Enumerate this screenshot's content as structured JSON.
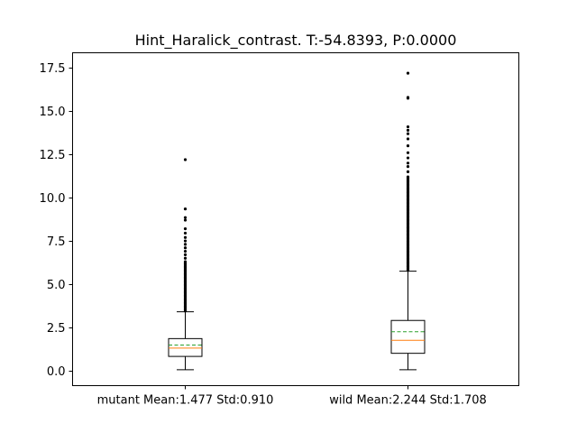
{
  "chart_data": {
    "type": "box",
    "title": "Hint_Haralick_contrast. T:-54.8393, P:0.0000",
    "xlabel": "",
    "ylabel": "",
    "ylim": [
      -0.87,
      18.38
    ],
    "yticks": [
      "0.0",
      "2.5",
      "5.0",
      "7.5",
      "10.0",
      "12.5",
      "15.0",
      "17.5"
    ],
    "ytick_values": [
      0,
      2.5,
      5,
      7.5,
      10,
      12.5,
      15,
      17.5
    ],
    "categories": [
      "mutant Mean:1.477 Std:0.910",
      "wild Mean:2.244 Std:1.708"
    ],
    "grid": false,
    "legend": "none",
    "colors": {
      "box": "#000000",
      "median": "#ff7f0e",
      "mean": "#2ca02c",
      "flier": "#000000"
    },
    "boxes": [
      {
        "category": "mutant Mean:1.477 Std:0.910",
        "whisker_low": 0.05,
        "q1": 0.82,
        "median": 1.3,
        "mean": 1.477,
        "q3": 1.85,
        "whisker_high": 3.4,
        "outliers_dense_range": [
          3.45,
          6.3
        ],
        "outliers": [
          6.5,
          6.7,
          6.9,
          7.1,
          7.3,
          7.5,
          7.7,
          7.95,
          8.2,
          8.7,
          8.85,
          9.35,
          12.2
        ]
      },
      {
        "category": "wild Mean:2.244 Std:1.708",
        "whisker_low": 0.05,
        "q1": 1.0,
        "median": 1.75,
        "mean": 2.244,
        "q3": 2.9,
        "whisker_high": 5.75,
        "outliers_dense_range": [
          5.8,
          11.2
        ],
        "outliers": [
          11.5,
          11.8,
          12.0,
          12.3,
          12.6,
          13.0,
          13.4,
          13.7,
          13.9,
          14.1,
          15.75,
          15.8,
          17.2
        ]
      }
    ]
  }
}
